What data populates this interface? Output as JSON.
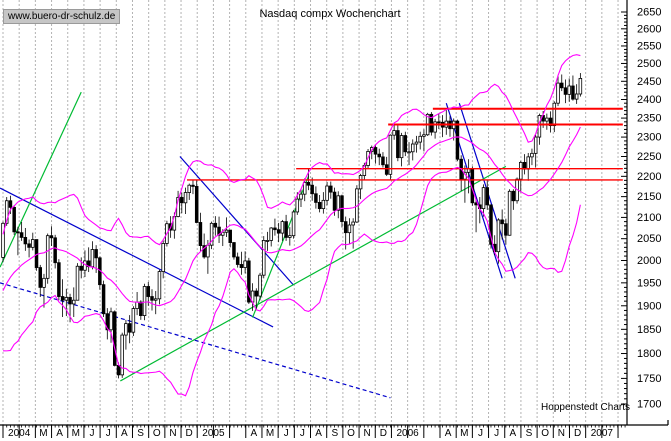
{
  "header": {
    "watermark": "www.buero-dr-schulz.de",
    "title": "Nasdaq compx Wochenchart"
  },
  "footer": {
    "credit": "Hoppenstedt Charts"
  },
  "colors": {
    "background": "#ffffff",
    "candle_up_fill": "#ffffff",
    "candle_down_fill": "#000000",
    "candle_stroke": "#000000",
    "bollinger": "#ff00ff",
    "trend_blue": "#0000cc",
    "trend_green": "#00bb33",
    "resistance_red": "#ff0000",
    "gridline": "#b3b3b3",
    "axis": "#000000"
  },
  "chart_data": {
    "type": "candlestick",
    "timeframe": "weekly",
    "title": "Nasdaq compx Wochenchart",
    "y_axis": {
      "side": "right",
      "min": 1700,
      "max": 2650,
      "tick": 50,
      "minor_tick": 10,
      "scale": "log"
    },
    "x_axis": {
      "months_total": 38,
      "gridline_per_month": true,
      "labels": [
        {
          "t": "2004",
          "m": 0,
          "span": 2
        },
        {
          "t": "M",
          "m": 2
        },
        {
          "t": "A",
          "m": 3
        },
        {
          "t": "M",
          "m": 4
        },
        {
          "t": "J",
          "m": 5
        },
        {
          "t": "J",
          "m": 6
        },
        {
          "t": "A",
          "m": 7
        },
        {
          "t": "S",
          "m": 8
        },
        {
          "t": "O",
          "m": 9
        },
        {
          "t": "N",
          "m": 10
        },
        {
          "t": "D",
          "m": 11
        },
        {
          "t": "2005",
          "m": 12,
          "span": 2
        },
        {
          "t": "A",
          "m": 15
        },
        {
          "t": "M",
          "m": 16
        },
        {
          "t": "J",
          "m": 17
        },
        {
          "t": "J",
          "m": 18
        },
        {
          "t": "A",
          "m": 19
        },
        {
          "t": "S",
          "m": 20
        },
        {
          "t": "O",
          "m": 21
        },
        {
          "t": "N",
          "m": 22
        },
        {
          "t": "D",
          "m": 23
        },
        {
          "t": "2006",
          "m": 24,
          "span": 2
        },
        {
          "t": "A",
          "m": 27
        },
        {
          "t": "M",
          "m": 28
        },
        {
          "t": "J",
          "m": 29
        },
        {
          "t": "J",
          "m": 30
        },
        {
          "t": "A",
          "m": 31
        },
        {
          "t": "S",
          "m": 32
        },
        {
          "t": "O",
          "m": 33
        },
        {
          "t": "N",
          "m": 34
        },
        {
          "t": "D",
          "m": 35
        },
        {
          "t": "2007",
          "m": 36,
          "span": 2
        }
      ]
    },
    "bollinger": {
      "period": 20,
      "stdev": 2
    },
    "pre_weeks_hidden": 20,
    "candles_chl": [
      [
        1765,
        1792,
        1737
      ],
      [
        1810,
        1815,
        1760
      ],
      [
        1858,
        1862,
        1805
      ],
      [
        1855,
        1888,
        1841
      ],
      [
        1905,
        1909,
        1850
      ],
      [
        1879,
        1913,
        1867
      ],
      [
        1912,
        1920,
        1874
      ],
      [
        1915,
        1939,
        1896
      ],
      [
        1932,
        1938,
        1899
      ],
      [
        1865,
        1936,
        1860
      ],
      [
        1890,
        1907,
        1841
      ],
      [
        1932,
        1940,
        1882
      ],
      [
        1970,
        1979,
        1928
      ],
      [
        1949,
        1983,
        1942
      ],
      [
        1960,
        1978,
        1931
      ],
      [
        2003,
        2010,
        1956
      ],
      [
        1949,
        2015,
        1945
      ],
      [
        1973,
        1984,
        1936
      ],
      [
        2006,
        2011,
        1966
      ],
      [
        2007,
        2016,
        1983
      ],
      [
        2086,
        2090,
        1996
      ],
      [
        2140,
        2149,
        2080
      ],
      [
        2124,
        2152,
        2108
      ],
      [
        2066,
        2129,
        2059
      ],
      [
        2064,
        2078,
        2012
      ],
      [
        2053,
        2089,
        2045
      ],
      [
        2038,
        2075,
        2022
      ],
      [
        2030,
        2048,
        2007
      ],
      [
        2048,
        2064,
        2023
      ],
      [
        1984,
        2045,
        1977
      ],
      [
        1940,
        1990,
        1919
      ],
      [
        1960,
        1970,
        1896
      ],
      [
        2057,
        2062,
        1948
      ],
      [
        2052,
        2079,
        2033
      ],
      [
        1995,
        2059,
        1982
      ],
      [
        1920,
        2003,
        1912
      ],
      [
        1912,
        1958,
        1876
      ],
      [
        1918,
        1937,
        1878
      ],
      [
        1904,
        1926,
        1865
      ],
      [
        1912,
        1940,
        1876
      ],
      [
        1987,
        1994,
        1913
      ],
      [
        1978,
        2007,
        1960
      ],
      [
        1999,
        2023,
        1963
      ],
      [
        1986,
        2030,
        1974
      ],
      [
        2025,
        2044,
        1980
      ],
      [
        2006,
        2035,
        1972
      ],
      [
        1946,
        2009,
        1935
      ],
      [
        1883,
        1955,
        1876
      ],
      [
        1849,
        1895,
        1829
      ],
      [
        1887,
        1896,
        1822
      ],
      [
        1776,
        1890,
        1774
      ],
      [
        1757,
        1782,
        1750
      ],
      [
        1838,
        1843,
        1751
      ],
      [
        1862,
        1870,
        1808
      ],
      [
        1844,
        1880,
        1821
      ],
      [
        1894,
        1899,
        1836
      ],
      [
        1908,
        1930,
        1880
      ],
      [
        1879,
        1912,
        1870
      ],
      [
        1942,
        1948,
        1869
      ],
      [
        1920,
        1952,
        1900
      ],
      [
        1912,
        1936,
        1890
      ],
      [
        1915,
        1932,
        1882
      ],
      [
        1975,
        1979,
        1903
      ],
      [
        2039,
        2048,
        1960
      ],
      [
        2085,
        2092,
        2032
      ],
      [
        2070,
        2103,
        2052
      ],
      [
        2102,
        2112,
        2050
      ],
      [
        2148,
        2164,
        2100
      ],
      [
        2135,
        2160,
        2110
      ],
      [
        2160,
        2172,
        2108
      ],
      [
        2178,
        2182,
        2142
      ],
      [
        2175,
        2191,
        2156
      ],
      [
        2088,
        2192,
        2086
      ],
      [
        2034,
        2111,
        2021
      ],
      [
        2008,
        2062,
        2004
      ],
      [
        2035,
        2047,
        1970
      ],
      [
        2086,
        2090,
        2026
      ],
      [
        2077,
        2103,
        2057
      ],
      [
        2058,
        2102,
        2040
      ],
      [
        2065,
        2072,
        2033
      ],
      [
        2070,
        2100,
        2054
      ],
      [
        2041,
        2069,
        2030
      ],
      [
        2008,
        2042,
        2002
      ],
      [
        1991,
        2018,
        1984
      ],
      [
        1984,
        2020,
        1968
      ],
      [
        1999,
        2021,
        1971
      ],
      [
        1908,
        2006,
        1904
      ],
      [
        1932,
        1949,
        1889
      ],
      [
        1921,
        1938,
        1890
      ],
      [
        1967,
        1972,
        1912
      ],
      [
        2046,
        2056,
        1960
      ],
      [
        2046,
        2066,
        2022
      ],
      [
        2075,
        2077,
        2032
      ],
      [
        2071,
        2097,
        2057
      ],
      [
        2063,
        2087,
        2042
      ],
      [
        2090,
        2094,
        2045
      ],
      [
        2053,
        2106,
        2045
      ],
      [
        2057,
        2077,
        2034
      ],
      [
        2113,
        2118,
        2050
      ],
      [
        2144,
        2161,
        2106
      ],
      [
        2156,
        2168,
        2125
      ],
      [
        2185,
        2195,
        2139
      ],
      [
        2178,
        2219,
        2166
      ],
      [
        2157,
        2197,
        2140
      ],
      [
        2136,
        2175,
        2121
      ],
      [
        2121,
        2154,
        2112
      ],
      [
        2141,
        2161,
        2109
      ],
      [
        2176,
        2186,
        2129
      ],
      [
        2161,
        2187,
        2145
      ],
      [
        2117,
        2172,
        2104
      ],
      [
        2152,
        2163,
        2098
      ],
      [
        2090,
        2155,
        2076
      ],
      [
        2064,
        2102,
        2025
      ],
      [
        2082,
        2098,
        2037
      ],
      [
        2089,
        2098,
        2027
      ],
      [
        2169,
        2178,
        2087
      ],
      [
        2202,
        2206,
        2144
      ],
      [
        2227,
        2234,
        2190
      ],
      [
        2263,
        2269,
        2220
      ],
      [
        2273,
        2278,
        2243
      ],
      [
        2256,
        2279,
        2232
      ],
      [
        2249,
        2270,
        2228
      ],
      [
        2229,
        2261,
        2222
      ],
      [
        2205,
        2249,
        2201
      ],
      [
        2305,
        2307,
        2190
      ],
      [
        2317,
        2333,
        2293
      ],
      [
        2247,
        2331,
        2238
      ],
      [
        2304,
        2311,
        2225
      ],
      [
        2262,
        2314,
        2251
      ],
      [
        2262,
        2287,
        2228
      ],
      [
        2282,
        2294,
        2240
      ],
      [
        2287,
        2303,
        2260
      ],
      [
        2302,
        2314,
        2268
      ],
      [
        2306,
        2320,
        2263
      ],
      [
        2360,
        2364,
        2303
      ],
      [
        2313,
        2366,
        2304
      ],
      [
        2340,
        2348,
        2296
      ],
      [
        2339,
        2361,
        2321
      ],
      [
        2326,
        2358,
        2300
      ],
      [
        2342,
        2375,
        2306
      ],
      [
        2322,
        2355,
        2301
      ],
      [
        2342,
        2349,
        2291
      ],
      [
        2243,
        2346,
        2238
      ],
      [
        2193,
        2253,
        2164
      ],
      [
        2210,
        2227,
        2135
      ],
      [
        2219,
        2243,
        2158
      ],
      [
        2135,
        2225,
        2128
      ],
      [
        2130,
        2147,
        2065
      ],
      [
        2121,
        2149,
        2086
      ],
      [
        2172,
        2180,
        2102
      ],
      [
        2130,
        2190,
        2118
      ],
      [
        2037,
        2128,
        2027
      ],
      [
        2020,
        2058,
        2012
      ],
      [
        2094,
        2098,
        1993
      ],
      [
        2085,
        2119,
        2048
      ],
      [
        2058,
        2097,
        2036
      ],
      [
        2163,
        2168,
        2057
      ],
      [
        2140,
        2168,
        2118
      ],
      [
        2193,
        2197,
        2133
      ],
      [
        2235,
        2239,
        2160
      ],
      [
        2218,
        2256,
        2205
      ],
      [
        2249,
        2259,
        2189
      ],
      [
        2258,
        2270,
        2228
      ],
      [
        2300,
        2306,
        2222
      ],
      [
        2357,
        2362,
        2280
      ],
      [
        2342,
        2369,
        2324
      ],
      [
        2350,
        2362,
        2319
      ],
      [
        2330,
        2368,
        2312
      ],
      [
        2390,
        2395,
        2313
      ],
      [
        2445,
        2468,
        2382
      ],
      [
        2432,
        2469,
        2423
      ],
      [
        2414,
        2455,
        2390
      ],
      [
        2437,
        2458,
        2394
      ],
      [
        2401,
        2466,
        2397
      ],
      [
        2415,
        2442,
        2388
      ],
      [
        2458,
        2473,
        2408
      ]
    ],
    "resistance_lines": [
      {
        "price": 2375,
        "from_week": 115.4,
        "to_week": 166.4,
        "width": 2
      },
      {
        "price": 2333,
        "from_week": 103.4,
        "to_week": 166.4,
        "width": 2
      },
      {
        "price": 2219,
        "from_week": 78.7,
        "to_week": 166.4,
        "width": 1.4
      },
      {
        "price": 2191,
        "from_week": 49.4,
        "to_week": 166.4,
        "width": 1.4
      }
    ],
    "trend_lines": [
      {
        "name": "downtrend-2004",
        "color": "#0000cc",
        "dash": null,
        "pts": [
          [
            -0.8,
            2171
          ],
          [
            72.5,
            1855
          ]
        ]
      },
      {
        "name": "channel-lower-2004-dashed",
        "color": "#0000cc",
        "dash": "4,3",
        "pts": [
          [
            -0.8,
            1950
          ],
          [
            104,
            1712
          ]
        ]
      },
      {
        "name": "downtrend-2005",
        "color": "#0000cc",
        "dash": null,
        "pts": [
          [
            47.5,
            2250
          ],
          [
            78,
            1945
          ]
        ]
      },
      {
        "name": "downtrend-2006-a",
        "color": "#0000cc",
        "dash": null,
        "pts": [
          [
            119,
            2390
          ],
          [
            134,
            1960
          ]
        ]
      },
      {
        "name": "downtrend-2006-b",
        "color": "#0000cc",
        "dash": null,
        "pts": [
          [
            122.5,
            2390
          ],
          [
            137.5,
            1960
          ]
        ]
      },
      {
        "name": "steep-uptrend-2004",
        "color": "#00bb33",
        "dash": null,
        "pts": [
          [
            -0.8,
            1985
          ],
          [
            21,
            2420
          ]
        ]
      },
      {
        "name": "long-uptrend-2004-2006",
        "color": "#00bb33",
        "dash": null,
        "pts": [
          [
            31.5,
            1745
          ],
          [
            135,
            2225
          ]
        ]
      },
      {
        "name": "steep-uptrend-2005",
        "color": "#00bb33",
        "dash": null,
        "pts": [
          [
            67,
            1875
          ],
          [
            82,
            2200
          ]
        ]
      }
    ]
  }
}
